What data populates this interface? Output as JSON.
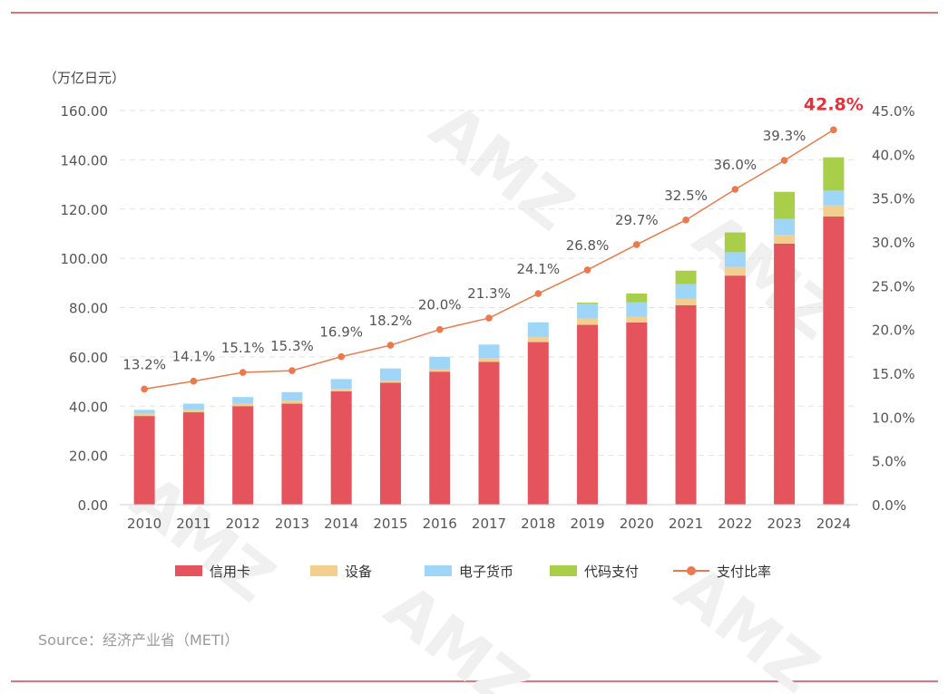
{
  "chart_data": {
    "type": "bar",
    "stacked": true,
    "y_unit_label": "（万亿日元）",
    "y_left_ticks": [
      "0.00",
      "20.00",
      "40.00",
      "60.00",
      "80.00",
      "100.00",
      "120.00",
      "140.00",
      "160.00"
    ],
    "y_left_range": [
      0,
      160
    ],
    "y_right_ticks": [
      "0.0%",
      "5.0%",
      "10.0%",
      "15.0%",
      "20.0%",
      "25.0%",
      "30.0%",
      "35.0%",
      "40.0%",
      "45.0%"
    ],
    "y_right_range": [
      0,
      45
    ],
    "categories": [
      "2010",
      "2011",
      "2012",
      "2013",
      "2014",
      "2015",
      "2016",
      "2017",
      "2018",
      "2019",
      "2020",
      "2021",
      "2022",
      "2023",
      "2024"
    ],
    "series": [
      {
        "name": "信用卡",
        "type": "bar",
        "color": "#e5545d",
        "values": [
          36,
          37.5,
          40,
          41,
          46,
          49.5,
          54,
          58,
          66,
          73,
          74,
          81,
          93,
          106,
          117
        ]
      },
      {
        "name": "设备",
        "type": "bar",
        "color": "#f2cf8e",
        "values": [
          1,
          1,
          1.2,
          1.2,
          1,
          0.8,
          1,
          1.5,
          2,
          2.5,
          2.2,
          2.5,
          3.5,
          3.5,
          4.5
        ]
      },
      {
        "name": "电子货币",
        "type": "bar",
        "color": "#9fd6f8",
        "values": [
          1.5,
          2.5,
          2.5,
          3.5,
          4,
          5,
          5,
          5.5,
          6,
          6,
          6,
          6,
          6,
          6.5,
          6
        ]
      },
      {
        "name": "代码支付",
        "type": "bar",
        "color": "#a9cf4a",
        "values": [
          0,
          0,
          0,
          0,
          0,
          0,
          0,
          0,
          0,
          0.5,
          3.5,
          5.5,
          8,
          11,
          13.5
        ]
      },
      {
        "name": "支付比率",
        "type": "line",
        "axis": "right",
        "color": "#ea7a4c",
        "values": [
          13.2,
          14.1,
          15.1,
          15.3,
          16.9,
          18.2,
          20.0,
          21.3,
          24.1,
          26.8,
          29.7,
          32.5,
          36.0,
          39.3,
          42.8
        ],
        "labels": [
          "13.2%",
          "14.1%",
          "15.1%",
          "15.3%",
          "16.9%",
          "18.2%",
          "20.0%",
          "21.3%",
          "24.1%",
          "26.8%",
          "29.7%",
          "32.5%",
          "36.0%",
          "39.3%",
          "42.8%"
        ],
        "highlight_last_color": "#e8303a"
      }
    ],
    "grid": true,
    "legend_position": "bottom"
  },
  "source": "Source：经济产业省（METI）",
  "watermark": "AMZ"
}
